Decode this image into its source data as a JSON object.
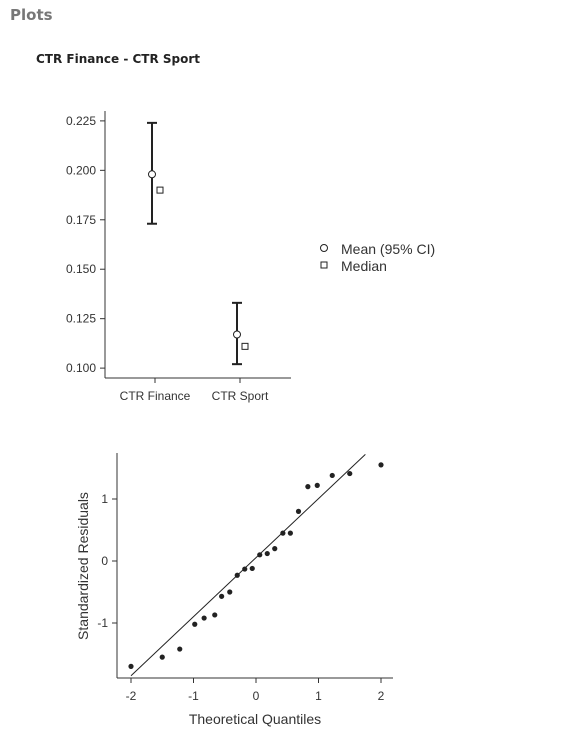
{
  "header": {
    "title": "Plots"
  },
  "section": {
    "title": "CTR Finance - CTR Sport"
  },
  "chart_data": [
    {
      "type": "errorbar",
      "categories": [
        "CTR Finance",
        "CTR Sport"
      ],
      "mean": [
        0.198,
        0.117
      ],
      "ci_lower": [
        0.173,
        0.102
      ],
      "ci_upper": [
        0.224,
        0.133
      ],
      "median": [
        0.19,
        0.111
      ],
      "yticks": [
        0.1,
        0.125,
        0.15,
        0.175,
        0.2,
        0.225
      ],
      "ylim": [
        0.095,
        0.23
      ],
      "legend": {
        "items": [
          "Mean (95% CI)",
          "Median"
        ],
        "placement": "right"
      },
      "grid": false
    },
    {
      "type": "scatter",
      "xlabel": "Theoretical Quantiles",
      "ylabel": "Standardized Residuals",
      "xticks": [
        -2,
        -1,
        0,
        1,
        2
      ],
      "yticks": [
        -1,
        0,
        1
      ],
      "xlim": [
        -2.2,
        2.2
      ],
      "ylim": [
        -1.9,
        1.7
      ],
      "reference_line": {
        "x": [
          -2.0,
          1.75
        ],
        "y": [
          -1.85,
          1.72
        ]
      },
      "points": [
        [
          -2.0,
          -1.7
        ],
        [
          -1.5,
          -1.55
        ],
        [
          -1.22,
          -1.42
        ],
        [
          -0.98,
          -1.02
        ],
        [
          -0.83,
          -0.92
        ],
        [
          -0.66,
          -0.87
        ],
        [
          -0.55,
          -0.57
        ],
        [
          -0.42,
          -0.5
        ],
        [
          -0.3,
          -0.23
        ],
        [
          -0.18,
          -0.13
        ],
        [
          -0.06,
          -0.12
        ],
        [
          0.06,
          0.1
        ],
        [
          0.18,
          0.12
        ],
        [
          0.3,
          0.2
        ],
        [
          0.43,
          0.45
        ],
        [
          0.55,
          0.45
        ],
        [
          0.68,
          0.8
        ],
        [
          0.83,
          1.2
        ],
        [
          0.98,
          1.22
        ],
        [
          1.22,
          1.38
        ],
        [
          1.5,
          1.41
        ],
        [
          2.0,
          1.55
        ]
      ],
      "grid": false
    }
  ]
}
